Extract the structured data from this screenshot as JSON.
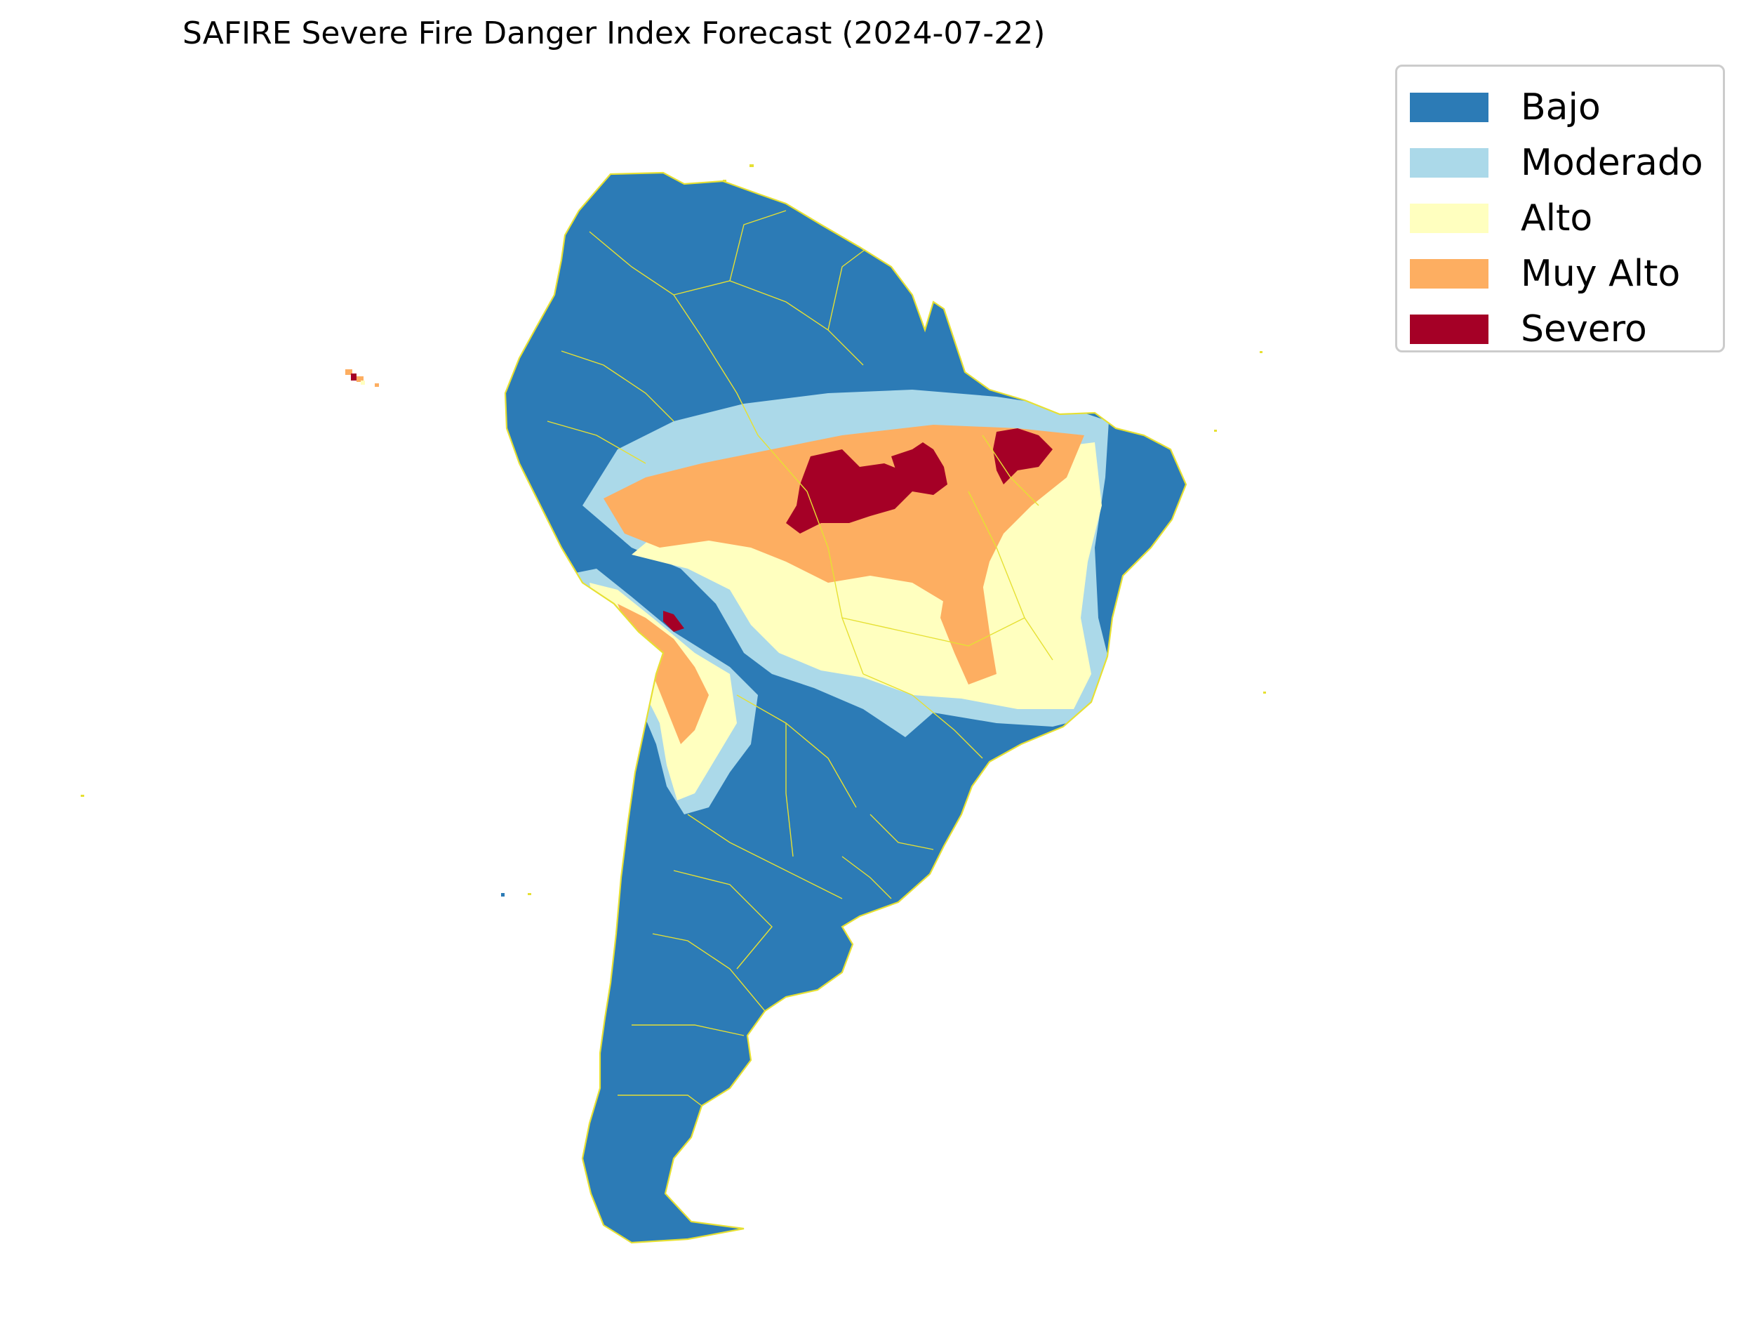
{
  "title": "SAFIRE Severe Fire Danger Index Forecast (2024-07-22)",
  "legend": {
    "items": [
      {
        "label": "Bajo",
        "color": "#2c7bb6"
      },
      {
        "label": "Moderado",
        "color": "#abd9e9"
      },
      {
        "label": "Alto",
        "color": "#ffffbf"
      },
      {
        "label": "Muy Alto",
        "color": "#fdae61"
      },
      {
        "label": "Severo",
        "color": "#a50026"
      }
    ]
  },
  "boundary_color": "#e6e033"
}
